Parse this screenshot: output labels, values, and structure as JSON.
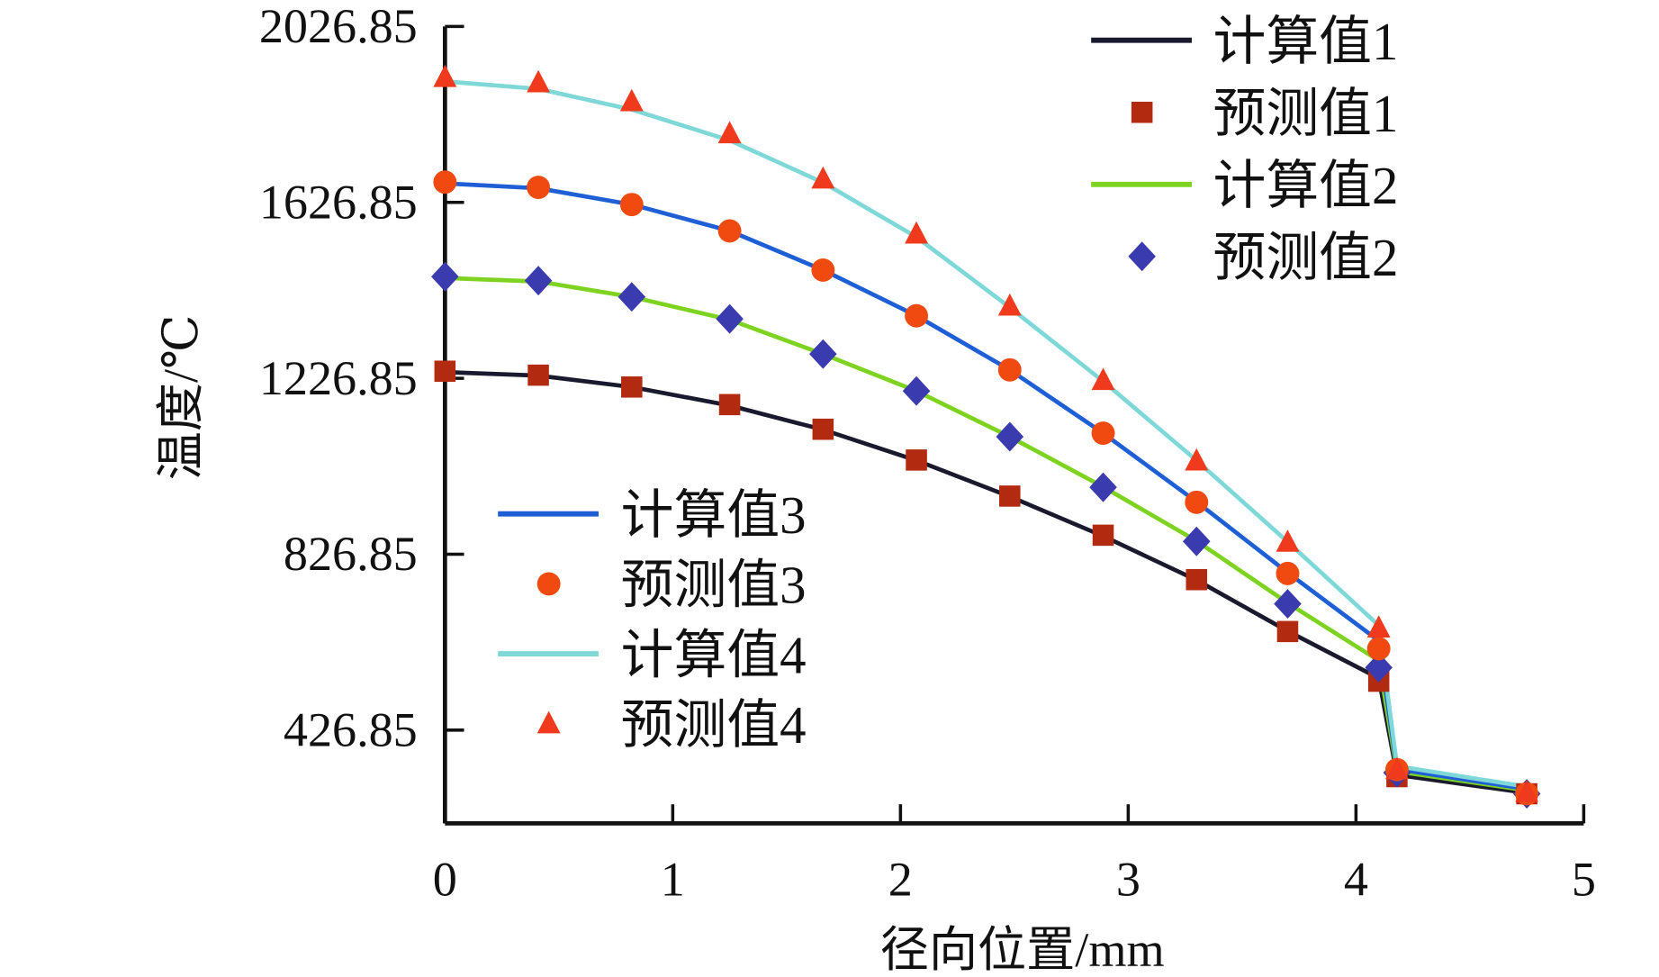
{
  "chart_data": {
    "type": "line",
    "title": "",
    "xlabel": "径向位置/mm",
    "ylabel": "温度/℃",
    "xlim": [
      0,
      5
    ],
    "ylim": [
      215,
      2026.85
    ],
    "xticks": [
      "0",
      "1",
      "2",
      "3",
      "4",
      "5"
    ],
    "xtick_values": [
      0,
      1,
      2,
      3,
      4,
      5
    ],
    "yticks": [
      "426.85",
      "826.85",
      "1226.85",
      "1626.85",
      "2026.85"
    ],
    "ytick_values": [
      426.85,
      826.85,
      1226.85,
      1626.85,
      2026.85
    ],
    "grid": false,
    "x": [
      0,
      0.41,
      0.82,
      1.25,
      1.66,
      2.07,
      2.48,
      2.89,
      3.3,
      3.7,
      4.1,
      4.18,
      4.75
    ],
    "series": [
      {
        "name": "计算值1",
        "kind": "line",
        "color": "#1a1a2e",
        "values": [
          1241,
          1233,
          1207,
          1165,
          1110,
          1040,
          958,
          868,
          768,
          652,
          545,
          325,
          284
        ]
      },
      {
        "name": "预测值1",
        "kind": "square",
        "color": "#b22a10",
        "values": [
          1243,
          1234,
          1207,
          1167,
          1111,
          1041,
          959,
          870,
          769,
          651,
          538,
          321,
          282
        ]
      },
      {
        "name": "计算值2",
        "kind": "line",
        "color": "#7ed321",
        "values": [
          1455,
          1447,
          1412,
          1360,
          1282,
          1198,
          1094,
          980,
          857,
          716,
          585,
          333,
          290
        ]
      },
      {
        "name": "预测值2",
        "kind": "diamond",
        "color": "#3b3bb0",
        "values": [
          1458,
          1449,
          1412,
          1362,
          1282,
          1198,
          1094,
          979,
          856,
          714,
          569,
          330,
          282
        ]
      },
      {
        "name": "计算值3",
        "kind": "line",
        "color": "#1f5fd6",
        "values": [
          1670,
          1659,
          1622,
          1562,
          1473,
          1369,
          1246,
          1102,
          946,
          785,
          630,
          338,
          293
        ]
      },
      {
        "name": "预测值3",
        "kind": "circle",
        "color": "#f04a10",
        "values": [
          1673,
          1661,
          1622,
          1562,
          1473,
          1369,
          1246,
          1102,
          945,
          783,
          612,
          337,
          282
        ]
      },
      {
        "name": "计算值4",
        "kind": "line",
        "color": "#7fd8d8",
        "values": [
          1902,
          1885,
          1838,
          1768,
          1672,
          1548,
          1388,
          1220,
          1040,
          855,
          665,
          345,
          298
        ]
      },
      {
        "name": "预测值4",
        "kind": "triangle",
        "color": "#f03a1e",
        "values": [
          1911,
          1899,
          1856,
          1783,
          1680,
          1555,
          1391,
          1222,
          1039,
          854,
          659,
          337,
          285
        ]
      }
    ],
    "legend": [
      {
        "placement": "top-right",
        "entries": [
          "计算值1",
          "预测值1",
          "计算值2",
          "预测值2"
        ]
      },
      {
        "placement": "lower-left",
        "entries": [
          "计算值3",
          "预测值3",
          "计算值4",
          "预测值4"
        ]
      }
    ]
  }
}
